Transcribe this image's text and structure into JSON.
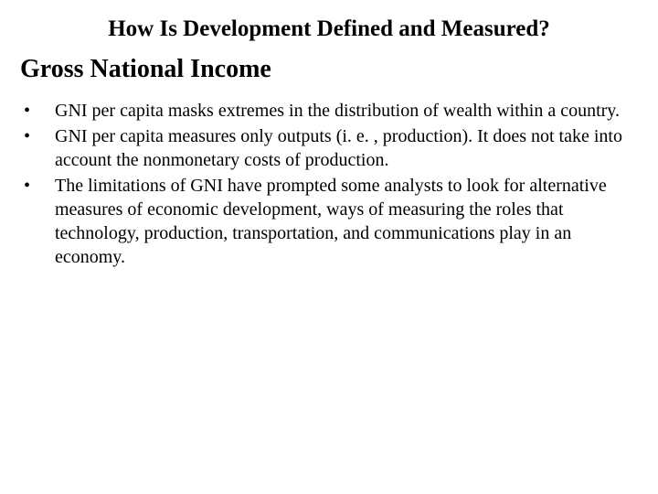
{
  "title": "How Is Development Defined and Measured?",
  "subtitle": "Gross National Income",
  "bullets": [
    {
      "text": "GNI per capita masks extremes in the distribution of wealth within a country."
    },
    {
      "text": "GNI per capita measures only outputs (i. e. , production). It does not take into account the nonmonetary costs of production."
    },
    {
      "text": "The limitations of GNI have prompted some analysts to look for alternative measures of economic development, ways of measuring the roles that technology, production, transportation, and communications play in an economy."
    }
  ],
  "styling": {
    "background_color": "#ffffff",
    "text_color": "#000000",
    "font_family": "Times New Roman",
    "title_fontsize": 25,
    "title_weight": "bold",
    "subtitle_fontsize": 28,
    "subtitle_weight": "bold",
    "body_fontsize": 20,
    "line_height": 26
  }
}
